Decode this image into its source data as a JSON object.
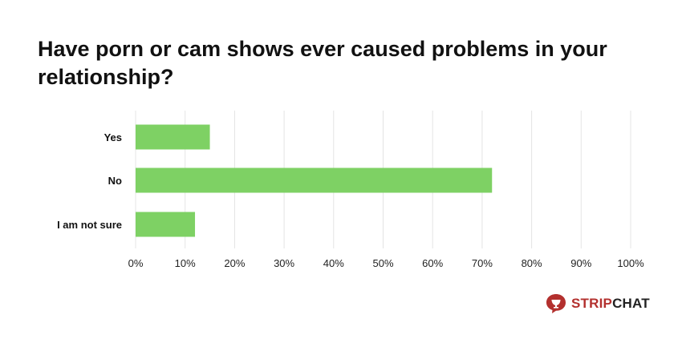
{
  "title": "Have porn or cam shows ever caused problems in your relationship?",
  "chart_data": {
    "type": "bar",
    "orientation": "horizontal",
    "categories": [
      "Yes",
      "No",
      "I am not sure"
    ],
    "values": [
      15,
      72,
      12
    ],
    "unit": "%",
    "xlim": [
      0,
      100
    ],
    "xticks": [
      "0%",
      "10%",
      "20%",
      "30%",
      "40%",
      "50%",
      "60%",
      "70%",
      "80%",
      "90%",
      "100%"
    ],
    "grid": true,
    "legend": "none",
    "bar_color": "#7ed164",
    "grid_color": "#e4e4e4"
  },
  "brand": {
    "icon": "stripchat-logo-icon",
    "name_part1": "STRIP",
    "name_part2": "CHAT",
    "color": "#b3302e"
  }
}
